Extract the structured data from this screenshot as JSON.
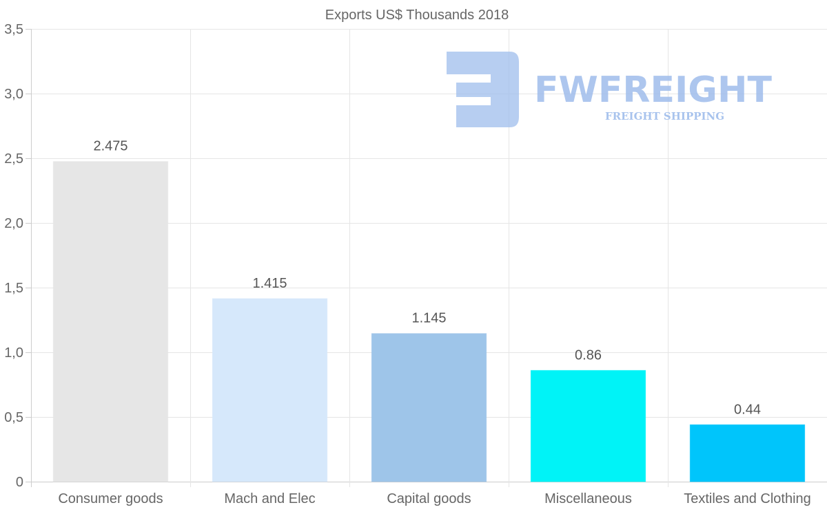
{
  "chart_data": {
    "type": "bar",
    "title": "Exports US$ Thousands 2018",
    "categories": [
      "Consumer goods",
      "Mach and Elec",
      "Capital goods",
      "Miscellaneous",
      "Textiles and Clothing"
    ],
    "values": [
      2.475,
      1.415,
      1.145,
      0.86,
      0.44
    ],
    "value_labels": [
      "2.475",
      "1.415",
      "1.145",
      "0.86",
      "0.44"
    ],
    "bar_colors": [
      "#e6e6e6",
      "#d6e8fb",
      "#9ec5e9",
      "#00f3f7",
      "#00c5fb"
    ],
    "y_ticks": [
      0,
      0.5,
      1.0,
      1.5,
      2.0,
      2.5,
      3.0,
      3.5
    ],
    "y_tick_labels": [
      "0",
      "0,5",
      "1,0",
      "1,5",
      "2,0",
      "2,5",
      "3,0",
      "3,5"
    ],
    "ylim": [
      0,
      3.5
    ],
    "xlabel": "",
    "ylabel": "",
    "grid": true
  },
  "watermark": {
    "brand": "FWFREIGHT",
    "tagline": "FREIGHT SHIPPING",
    "icon": "fwfreight-logo-icon"
  }
}
